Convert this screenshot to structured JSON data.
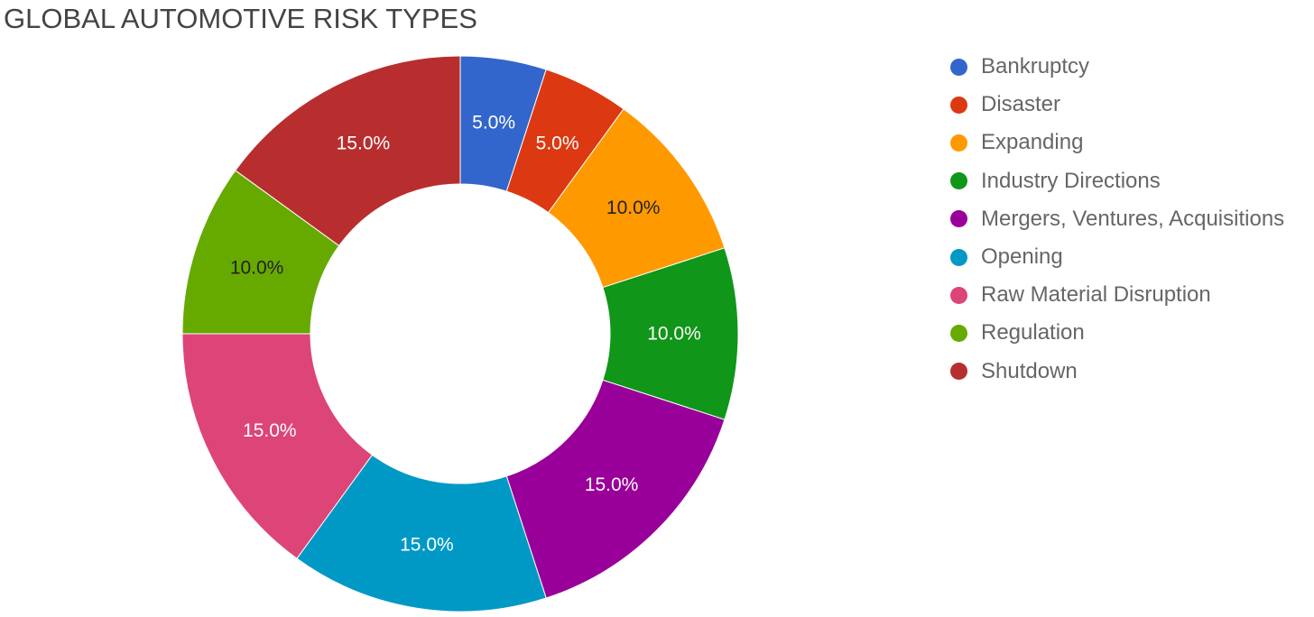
{
  "chart_data": {
    "type": "pie",
    "donut": true,
    "title": "GLOBAL AUTOMOTIVE RISK TYPES",
    "legend_position": "right",
    "slices": [
      {
        "name": "Bankruptcy",
        "value": 5.0,
        "label": "5.0%",
        "color": "#3366CC",
        "label_color": "#ffffff"
      },
      {
        "name": "Disaster",
        "value": 5.0,
        "label": "5.0%",
        "color": "#DC3912",
        "label_color": "#ffffff"
      },
      {
        "name": "Expanding",
        "value": 10.0,
        "label": "10.0%",
        "color": "#FF9900",
        "label_color": "#222222"
      },
      {
        "name": "Industry Directions",
        "value": 10.0,
        "label": "10.0%",
        "color": "#109618",
        "label_color": "#ffffff"
      },
      {
        "name": "Mergers, Ventures, Acquisitions",
        "value": 15.0,
        "label": "15.0%",
        "color": "#990099",
        "label_color": "#ffffff"
      },
      {
        "name": "Opening",
        "value": 15.0,
        "label": "15.0%",
        "color": "#0099C6",
        "label_color": "#ffffff"
      },
      {
        "name": "Raw Material Disruption",
        "value": 15.0,
        "label": "15.0%",
        "color": "#DD4477",
        "label_color": "#ffffff"
      },
      {
        "name": "Regulation",
        "value": 10.0,
        "label": "10.0%",
        "color": "#66AA00",
        "label_color": "#222222"
      },
      {
        "name": "Shutdown",
        "value": 15.0,
        "label": "15.0%",
        "color": "#B82E2E",
        "label_color": "#ffffff"
      }
    ]
  }
}
